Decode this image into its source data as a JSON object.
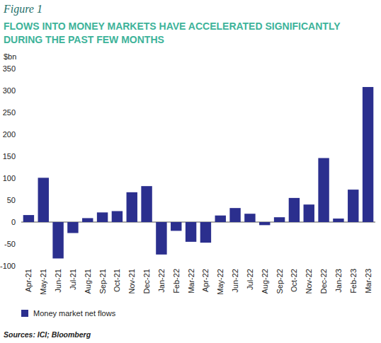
{
  "chart_data": {
    "type": "bar",
    "subtitle": "Figure 1",
    "title": "FLOWS INTO MONEY MARKETS HAVE ACCELERATED SIGNIFICANTLY DURING THE PAST FEW MONTHS",
    "y_label": "$bn",
    "annotations": [
      "Sources: ICI; Bloomberg"
    ],
    "categories": [
      "Apr-21",
      "May-21",
      "Jun-21",
      "Jul-21",
      "Aug-21",
      "Sep-21",
      "Oct-21",
      "Nov-21",
      "Dec-21",
      "Jan-22",
      "Feb-22",
      "Mar-22",
      "Apr-22",
      "May-22",
      "Jun-22",
      "Jul-22",
      "Aug-22",
      "Sep-22",
      "Oct-22",
      "Nov-22",
      "Dec-22",
      "Jan-23",
      "Feb-23",
      "Mar-23"
    ],
    "series": [
      {
        "name": "Money market net flows",
        "color": "#2b2f8e",
        "values": [
          16,
          101,
          -83,
          -25,
          9,
          22,
          25,
          68,
          82,
          -74,
          -20,
          -45,
          -47,
          15,
          32,
          19,
          -7,
          11,
          55,
          40,
          146,
          8,
          74,
          308
        ]
      }
    ],
    "ylim": [
      -100,
      350
    ],
    "yticks": [
      -100,
      -50,
      0,
      50,
      100,
      150,
      200,
      250,
      300,
      350
    ],
    "grid": false,
    "legend": "bottom"
  }
}
